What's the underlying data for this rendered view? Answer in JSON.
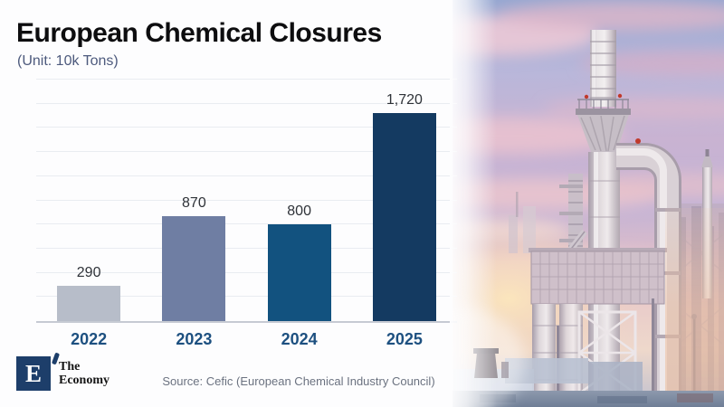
{
  "header": {
    "title": "European Chemical Closures",
    "subtitle": "(Unit: 10k Tons)"
  },
  "chart_data": {
    "type": "bar",
    "title": "European Chemical Closures",
    "unit_note": "(Unit: 10k Tons)",
    "categories": [
      "2022",
      "2023",
      "2024",
      "2025"
    ],
    "values": [
      290,
      870,
      800,
      1720
    ],
    "value_labels": [
      "290",
      "870",
      "800",
      "1,720"
    ],
    "xlabel": "",
    "ylabel": "",
    "ylim": [
      0,
      2000
    ],
    "grid_step": 200,
    "grid": true,
    "legend": false,
    "bar_colors": [
      "#b7bdc9",
      "#6f7ea3",
      "#12527f",
      "#143a61"
    ]
  },
  "footer": {
    "source": "Source: Cefic (European Chemical Industry Council)",
    "logo": {
      "letter": "E",
      "line1": "The",
      "line2": "Economy"
    }
  },
  "photo": {
    "description": "chemical-plant-at-sunset"
  },
  "colors": {
    "year_label": "#1d5080",
    "subtitle": "#4d5a7d",
    "source_text": "#6b7280",
    "logo_navy": "#1d3e6a",
    "gridline": "#e9ecf1",
    "axis_line": "#c6cad3",
    "sky_blue": "#96a7d1",
    "cloud_pink": "#ecc9d6",
    "sunset_glow": "#fce7bc"
  }
}
